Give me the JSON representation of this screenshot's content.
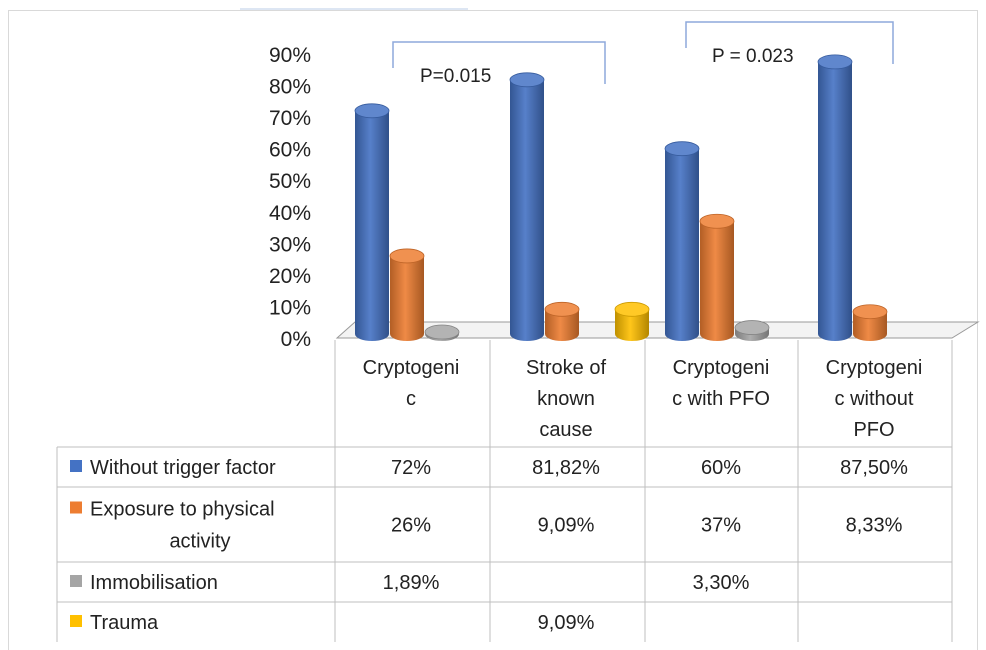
{
  "chart_data": {
    "type": "bar",
    "categories": [
      [
        "Cryptogeni",
        "c"
      ],
      [
        "Stroke of",
        "known",
        "cause"
      ],
      [
        "Cryptogeni",
        "c with PFO"
      ],
      [
        "Cryptogeni",
        "c without",
        "PFO"
      ]
    ],
    "ylim": [
      0,
      90
    ],
    "yticks": [
      "0%",
      "10%",
      "20%",
      "30%",
      "40%",
      "50%",
      "60%",
      "70%",
      "80%",
      "90%"
    ],
    "series": [
      {
        "name": "Without trigger factor",
        "color": "#4472c4",
        "values": [
          72,
          81.82,
          60,
          87.5
        ],
        "labels": [
          "72%",
          "81,82%",
          "60%",
          "87,50%"
        ]
      },
      {
        "name": "Exposure to physical activity",
        "name_lines": [
          "Exposure to physical",
          "activity"
        ],
        "color": "#ed7d31",
        "values": [
          26,
          9.09,
          37,
          8.33
        ],
        "labels": [
          "26%",
          "9,09%",
          "37%",
          "8,33%"
        ]
      },
      {
        "name": "Immobilisation",
        "color": "#a5a5a5",
        "values": [
          1.89,
          null,
          3.3,
          null
        ],
        "labels": [
          "1,89%",
          "",
          "3,30%",
          ""
        ]
      },
      {
        "name": "Trauma",
        "color": "#ffc000",
        "values": [
          null,
          9.09,
          null,
          null
        ],
        "labels": [
          "",
          "9,09%",
          "",
          ""
        ]
      }
    ],
    "annotations": [
      {
        "text": "P=0.015",
        "between": [
          0,
          1
        ]
      },
      {
        "text": "P = 0.023",
        "between": [
          2,
          3
        ]
      }
    ],
    "legend": "data-table"
  }
}
